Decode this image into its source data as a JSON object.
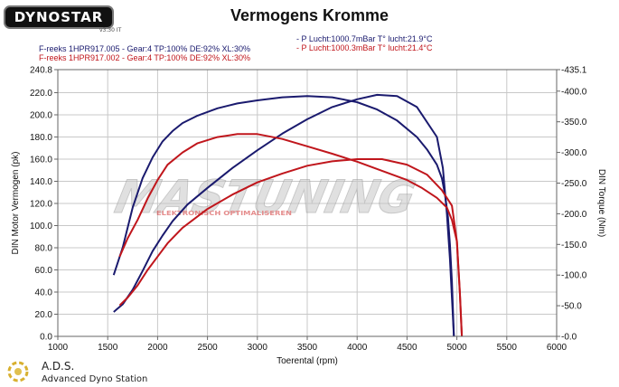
{
  "header": {
    "logo_text": "DYNOSTAR",
    "logo_sub": "v3.30 IT",
    "title": "Vermogens Kromme"
  },
  "legend": [
    {
      "left": "F-reeks 1HPR917.005 - Gear:4 TP:100% DE:92% XL:30%",
      "right": "- P Lucht:1000.7mBar T° lucht:21.9°C",
      "color": "#1a1a6e"
    },
    {
      "left": "F-reeks 1HPR917.002 - Gear:4 TP:100% DE:92% XL:30%",
      "right": "- P Lucht:1000.3mBar T° lucht:21.4°C",
      "color": "#c0161c"
    }
  ],
  "watermark": {
    "main": "MASTUNING",
    "sub": "ELEKTRONISCH OPTIMALISEREN"
  },
  "footer": {
    "title": "A.D.S.",
    "subtitle": "Advanced Dyno Station"
  },
  "chart_data": {
    "type": "line",
    "title": "Vermogens Kromme",
    "xlabel": "Toerental (rpm)",
    "ylabel": "DIN Motor Vermogen (pk)",
    "y2label": "DIN Torque (Nm)",
    "xlim": [
      1000,
      6000
    ],
    "ylim": [
      0,
      240.8
    ],
    "y2lim": [
      0,
      435.1
    ],
    "x_ticks": [
      "1000",
      "1500",
      "2000",
      "2500",
      "3000",
      "3500",
      "4000",
      "4500",
      "5000",
      "5500",
      "6000"
    ],
    "y_ticks": [
      "0.0",
      "20.0",
      "40.0",
      "60.0",
      "80.0",
      "100.0",
      "120.0",
      "140.0",
      "160.0",
      "180.0",
      "200.0",
      "220.0",
      "240.8"
    ],
    "y2_ticks": [
      "-0.0",
      "-50.0",
      "-100.0",
      "-150.0",
      "-200.0",
      "-250.0",
      "-300.0",
      "-350.0",
      "-400.0",
      "-435.1"
    ],
    "grid": true,
    "series": [
      {
        "name": "F-reeks 1HPR917.005 vermogen",
        "axis": "left",
        "color": "#1a1a6e",
        "x": [
          1560,
          1650,
          1750,
          1850,
          1950,
          2050,
          2150,
          2300,
          2500,
          2750,
          3000,
          3250,
          3500,
          3750,
          4000,
          4200,
          4400,
          4600,
          4800,
          4860,
          4900,
          4930,
          4950,
          4970
        ],
        "y": [
          22,
          29,
          42,
          59,
          77,
          91,
          104,
          119,
          134,
          152,
          168,
          183,
          196,
          207,
          214,
          218,
          217,
          207,
          180,
          152,
          110,
          70,
          35,
          0
        ]
      },
      {
        "name": "F-reeks 1HPR917.005 koppel",
        "axis": "right",
        "color": "#1a1a6e",
        "x": [
          1560,
          1650,
          1750,
          1850,
          1950,
          2050,
          2150,
          2250,
          2400,
          2600,
          2800,
          3000,
          3250,
          3500,
          3750,
          4000,
          4200,
          4400,
          4600,
          4700,
          4800,
          4850,
          4880,
          4910,
          4930,
          4950,
          4970
        ],
        "y": [
          100,
          145,
          210,
          258,
          292,
          318,
          335,
          348,
          360,
          372,
          380,
          385,
          390,
          392,
          390,
          382,
          370,
          352,
          325,
          305,
          280,
          258,
          232,
          195,
          150,
          90,
          0
        ]
      },
      {
        "name": "F-reeks 1HPR917.002 vermogen",
        "axis": "left",
        "color": "#c0161c",
        "x": [
          1620,
          1700,
          1800,
          1900,
          2000,
          2100,
          2250,
          2500,
          2750,
          3000,
          3250,
          3500,
          3750,
          4000,
          4250,
          4500,
          4700,
          4850,
          4950,
          5000,
          5030,
          5050
        ],
        "y": [
          28,
          35,
          46,
          60,
          72,
          84,
          98,
          115,
          128,
          139,
          147,
          154,
          158,
          160,
          160,
          155,
          146,
          132,
          118,
          86,
          40,
          0
        ]
      },
      {
        "name": "F-reeks 1HPR917.002 koppel",
        "axis": "right",
        "color": "#c0161c",
        "x": [
          1620,
          1700,
          1800,
          1900,
          2000,
          2100,
          2250,
          2400,
          2600,
          2800,
          3000,
          3250,
          3500,
          3750,
          4000,
          4250,
          4500,
          4650,
          4800,
          4900,
          4950,
          5000,
          5030,
          5050
        ],
        "y": [
          130,
          160,
          190,
          225,
          255,
          280,
          300,
          315,
          325,
          330,
          330,
          322,
          310,
          298,
          285,
          270,
          255,
          242,
          226,
          210,
          190,
          155,
          70,
          0
        ]
      }
    ]
  }
}
